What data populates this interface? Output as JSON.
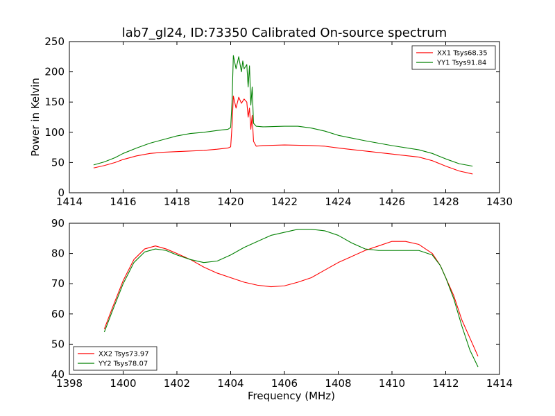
{
  "figure": {
    "title": "lab7_gl24, ID:73350 Calibrated On-source spectrum"
  },
  "colors": {
    "red": "#ff0000",
    "green": "#008000"
  },
  "chart_data": [
    {
      "type": "line",
      "title": "lab7_gl24, ID:73350 Calibrated On-source spectrum",
      "xlabel": "",
      "ylabel": "Power in Kelvin",
      "xlim": [
        1414,
        1430
      ],
      "ylim": [
        0,
        250
      ],
      "xticks": [
        "1414",
        "1416",
        "1418",
        "1420",
        "1422",
        "1424",
        "1426",
        "1428",
        "1430"
      ],
      "yticks": [
        "0",
        "50",
        "100",
        "150",
        "200",
        "250"
      ],
      "legend_position": "top-right",
      "grid": false,
      "series": [
        {
          "name": "XX1 Tsys68.35",
          "color": "#ff0000",
          "points": [
            [
              1414.9,
              41
            ],
            [
              1415.3,
              45
            ],
            [
              1415.7,
              50
            ],
            [
              1416.0,
              55
            ],
            [
              1416.5,
              61
            ],
            [
              1417.0,
              65
            ],
            [
              1417.5,
              67
            ],
            [
              1418.0,
              68
            ],
            [
              1418.5,
              69
            ],
            [
              1419.0,
              70
            ],
            [
              1419.5,
              72
            ],
            [
              1419.9,
              74
            ],
            [
              1420.0,
              76
            ],
            [
              1420.05,
              110
            ],
            [
              1420.1,
              160
            ],
            [
              1420.2,
              140
            ],
            [
              1420.3,
              158
            ],
            [
              1420.4,
              148
            ],
            [
              1420.5,
              155
            ],
            [
              1420.6,
              150
            ],
            [
              1420.65,
              125
            ],
            [
              1420.7,
              140
            ],
            [
              1420.75,
              105
            ],
            [
              1420.8,
              128
            ],
            [
              1420.85,
              85
            ],
            [
              1420.95,
              77
            ],
            [
              1421.2,
              78
            ],
            [
              1422.0,
              79
            ],
            [
              1423.0,
              78
            ],
            [
              1423.5,
              77
            ],
            [
              1424.0,
              74
            ],
            [
              1425.0,
              69
            ],
            [
              1426.0,
              64
            ],
            [
              1427.0,
              59
            ],
            [
              1427.5,
              53
            ],
            [
              1428.0,
              44
            ],
            [
              1428.5,
              36
            ],
            [
              1429.0,
              31
            ]
          ]
        },
        {
          "name": "YY1 Tsys91.84",
          "color": "#008000",
          "points": [
            [
              1414.9,
              46
            ],
            [
              1415.3,
              51
            ],
            [
              1415.7,
              58
            ],
            [
              1416.0,
              65
            ],
            [
              1416.5,
              74
            ],
            [
              1417.0,
              82
            ],
            [
              1417.5,
              88
            ],
            [
              1418.0,
              94
            ],
            [
              1418.5,
              98
            ],
            [
              1419.0,
              100
            ],
            [
              1419.5,
              103
            ],
            [
              1419.9,
              105
            ],
            [
              1420.0,
              108
            ],
            [
              1420.05,
              150
            ],
            [
              1420.1,
              227
            ],
            [
              1420.2,
              205
            ],
            [
              1420.3,
              225
            ],
            [
              1420.4,
              200
            ],
            [
              1420.45,
              218
            ],
            [
              1420.5,
              205
            ],
            [
              1420.6,
              212
            ],
            [
              1420.65,
              175
            ],
            [
              1420.7,
              210
            ],
            [
              1420.75,
              145
            ],
            [
              1420.8,
              175
            ],
            [
              1420.85,
              115
            ],
            [
              1420.95,
              110
            ],
            [
              1421.2,
              109
            ],
            [
              1422.0,
              110
            ],
            [
              1422.5,
              110
            ],
            [
              1423.0,
              107
            ],
            [
              1423.5,
              102
            ],
            [
              1424.0,
              95
            ],
            [
              1425.0,
              86
            ],
            [
              1426.0,
              78
            ],
            [
              1427.0,
              71
            ],
            [
              1427.5,
              65
            ],
            [
              1428.0,
              56
            ],
            [
              1428.5,
              48
            ],
            [
              1429.0,
              44
            ]
          ]
        }
      ]
    },
    {
      "type": "line",
      "title": "",
      "xlabel": "Frequency (MHz)",
      "ylabel": "",
      "xlim": [
        1398,
        1414
      ],
      "ylim": [
        40,
        90
      ],
      "xticks": [
        "1398",
        "1400",
        "1402",
        "1404",
        "1406",
        "1408",
        "1410",
        "1412",
        "1414"
      ],
      "yticks": [
        "40",
        "50",
        "60",
        "70",
        "80",
        "90"
      ],
      "legend_position": "bottom-left",
      "grid": false,
      "series": [
        {
          "name": "XX2 Tsys73.97",
          "color": "#ff0000",
          "points": [
            [
              1399.3,
              55
            ],
            [
              1399.6,
              62
            ],
            [
              1400.0,
              71
            ],
            [
              1400.4,
              78
            ],
            [
              1400.8,
              81.5
            ],
            [
              1401.2,
              82.5
            ],
            [
              1401.6,
              81.5
            ],
            [
              1402.0,
              80
            ],
            [
              1402.5,
              78
            ],
            [
              1403.0,
              75.5
            ],
            [
              1403.5,
              73.5
            ],
            [
              1404.0,
              72
            ],
            [
              1404.5,
              70.5
            ],
            [
              1405.0,
              69.5
            ],
            [
              1405.5,
              69
            ],
            [
              1406.0,
              69.3
            ],
            [
              1406.5,
              70.5
            ],
            [
              1407.0,
              72
            ],
            [
              1407.5,
              74.5
            ],
            [
              1408.0,
              77
            ],
            [
              1408.5,
              79
            ],
            [
              1409.0,
              81
            ],
            [
              1409.5,
              82.5
            ],
            [
              1410.0,
              84
            ],
            [
              1410.5,
              84
            ],
            [
              1411.0,
              83
            ],
            [
              1411.5,
              80
            ],
            [
              1411.8,
              76
            ],
            [
              1412.0,
              72
            ],
            [
              1412.3,
              66
            ],
            [
              1412.6,
              58
            ],
            [
              1412.9,
              52
            ],
            [
              1413.2,
              46
            ]
          ]
        },
        {
          "name": "YY2 Tsys78.07",
          "color": "#008000",
          "points": [
            [
              1399.3,
              54
            ],
            [
              1399.6,
              61
            ],
            [
              1400.0,
              70
            ],
            [
              1400.4,
              77
            ],
            [
              1400.8,
              80.5
            ],
            [
              1401.2,
              81.5
            ],
            [
              1401.6,
              81
            ],
            [
              1402.0,
              79.5
            ],
            [
              1402.5,
              78
            ],
            [
              1403.0,
              77
            ],
            [
              1403.5,
              77.5
            ],
            [
              1404.0,
              79.5
            ],
            [
              1404.5,
              82
            ],
            [
              1405.0,
              84
            ],
            [
              1405.5,
              86
            ],
            [
              1406.0,
              87
            ],
            [
              1406.5,
              88
            ],
            [
              1407.0,
              88
            ],
            [
              1407.5,
              87.5
            ],
            [
              1408.0,
              86
            ],
            [
              1408.5,
              83.5
            ],
            [
              1409.0,
              81.5
            ],
            [
              1409.5,
              81
            ],
            [
              1410.0,
              81
            ],
            [
              1410.5,
              81
            ],
            [
              1411.0,
              81
            ],
            [
              1411.5,
              79.5
            ],
            [
              1411.8,
              76
            ],
            [
              1412.0,
              72
            ],
            [
              1412.3,
              65
            ],
            [
              1412.6,
              56
            ],
            [
              1412.9,
              48
            ],
            [
              1413.2,
              42.5
            ]
          ]
        }
      ]
    }
  ]
}
